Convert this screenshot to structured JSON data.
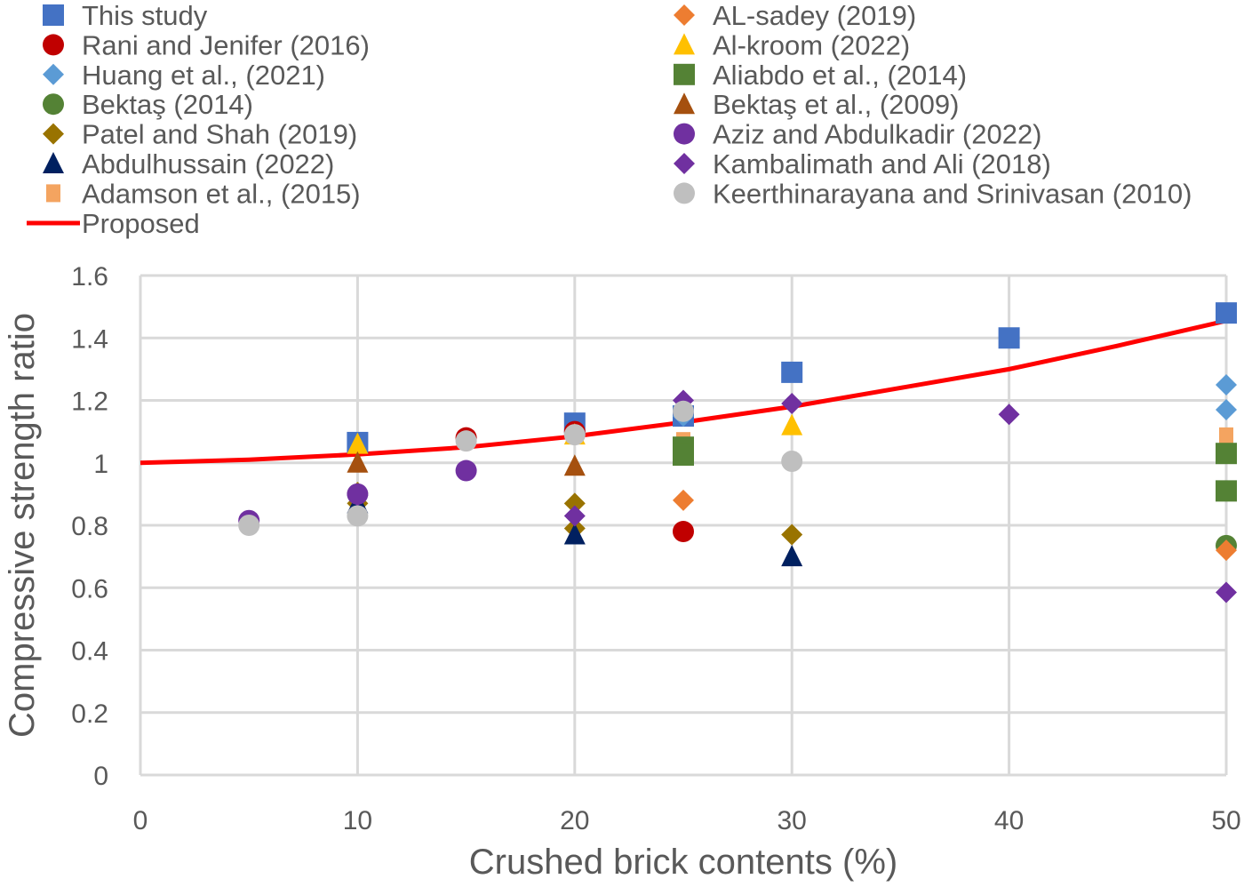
{
  "chart_data": {
    "type": "scatter",
    "xlabel": "Crushed brick contents (%)",
    "ylabel": "Compressive strength ratio",
    "xlim": [
      0,
      50
    ],
    "ylim": [
      0,
      1.6
    ],
    "xticks": [
      "0",
      "10",
      "20",
      "30",
      "40",
      "50"
    ],
    "yticks": [
      "0",
      "0.2",
      "0.4",
      "0.6",
      "0.8",
      "1",
      "1.2",
      "1.4",
      "1.6"
    ],
    "grid": true,
    "legend_placement": "top",
    "series": [
      {
        "name": "This study",
        "marker": "square",
        "color": "#4472C4",
        "points": [
          [
            10,
            1.065
          ],
          [
            20,
            1.127
          ],
          [
            25,
            1.15
          ],
          [
            30,
            1.29
          ],
          [
            40,
            1.4
          ],
          [
            50,
            1.48
          ]
        ]
      },
      {
        "name": "Rani and Jenifer (2016)",
        "marker": "circle",
        "color": "#C00000",
        "points": [
          [
            15,
            1.08
          ],
          [
            20,
            1.1
          ],
          [
            25,
            0.78
          ]
        ]
      },
      {
        "name": "Huang et al., (2021)",
        "marker": "diamond",
        "color": "#5B9BD5",
        "points": [
          [
            25,
            1.15
          ],
          [
            50,
            1.25
          ],
          [
            50,
            1.17
          ]
        ]
      },
      {
        "name": "Bektaş (2014)",
        "marker": "circle",
        "color": "#548235",
        "points": [
          [
            50,
            0.735
          ]
        ]
      },
      {
        "name": "Patel and Shah (2019)",
        "marker": "diamond",
        "color": "#997300",
        "points": [
          [
            10,
            0.905
          ],
          [
            10,
            0.87
          ],
          [
            20,
            0.87
          ],
          [
            20,
            0.79
          ],
          [
            30,
            0.77
          ]
        ]
      },
      {
        "name": "Abdulhussain (2022)",
        "marker": "triangle",
        "color": "#002060",
        "points": [
          [
            10,
            0.87
          ],
          [
            20,
            0.77
          ],
          [
            30,
            0.7
          ]
        ]
      },
      {
        "name": "Adamson et al., (2015)",
        "marker": "square-small",
        "color": "#F4A460",
        "points": [
          [
            25,
            1.07
          ],
          [
            50,
            1.085
          ]
        ]
      },
      {
        "name": "AL-sadey (2019)",
        "marker": "diamond",
        "color": "#ED7D31",
        "points": [
          [
            25,
            0.88
          ],
          [
            50,
            0.72
          ]
        ]
      },
      {
        "name": "Al-kroom (2022)",
        "marker": "triangle",
        "color": "#FFC000",
        "points": [
          [
            10,
            1.06
          ],
          [
            20,
            1.09
          ],
          [
            30,
            1.12
          ]
        ]
      },
      {
        "name": "Aliabdo et al., (2014)",
        "marker": "square",
        "color": "#548235",
        "points": [
          [
            25,
            1.05
          ],
          [
            25,
            1.025
          ],
          [
            50,
            1.03
          ],
          [
            50,
            0.91
          ]
        ]
      },
      {
        "name": "Bektaş et al., (2009)",
        "marker": "triangle",
        "color": "#A5500F",
        "points": [
          [
            10,
            1.0
          ],
          [
            20,
            0.99
          ]
        ]
      },
      {
        "name": "Aziz and Abdulkadir (2022)",
        "marker": "circle",
        "color": "#7030A0",
        "points": [
          [
            5,
            0.815
          ],
          [
            10,
            0.9
          ],
          [
            15,
            0.975
          ]
        ]
      },
      {
        "name": "Kambalimath and Ali (2018)",
        "marker": "diamond",
        "color": "#7030A0",
        "points": [
          [
            10,
            0.895
          ],
          [
            20,
            0.83
          ],
          [
            25,
            1.2
          ],
          [
            30,
            1.19
          ],
          [
            40,
            1.155
          ],
          [
            50,
            0.585
          ]
        ]
      },
      {
        "name": "Keerthinarayana and Srinivasan (2010)",
        "marker": "circle",
        "color": "#BFBFBF",
        "points": [
          [
            5,
            0.8
          ],
          [
            10,
            0.83
          ],
          [
            15,
            1.07
          ],
          [
            20,
            1.09
          ],
          [
            25,
            1.165
          ],
          [
            30,
            1.005
          ]
        ]
      }
    ],
    "line": {
      "name": "Proposed",
      "color": "#FF0000",
      "points": [
        [
          0,
          1.0
        ],
        [
          5,
          1.01
        ],
        [
          10,
          1.027
        ],
        [
          15,
          1.05
        ],
        [
          20,
          1.085
        ],
        [
          25,
          1.13
        ],
        [
          30,
          1.18
        ],
        [
          35,
          1.24
        ],
        [
          40,
          1.3
        ],
        [
          45,
          1.375
        ],
        [
          50,
          1.455
        ]
      ]
    }
  }
}
